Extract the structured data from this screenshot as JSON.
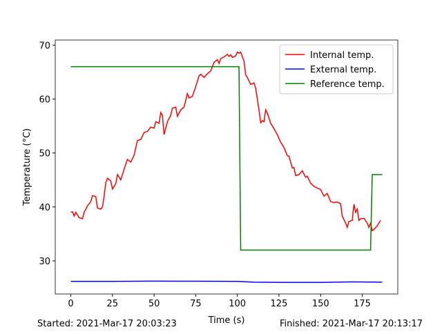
{
  "chart_data": {
    "type": "line",
    "xlabel": "Time (s)",
    "ylabel": "Temperature (°C)",
    "xlim": [
      -9.35,
      196.35
    ],
    "xticks": [
      0,
      25,
      50,
      75,
      100,
      125,
      150,
      175
    ],
    "ylim": [
      23.86,
      70.94
    ],
    "yticks": [
      30,
      40,
      50,
      60,
      70
    ],
    "legend": "upper right",
    "series": [
      {
        "name": "Internal temp.",
        "color": "#ff0000",
        "x": [
          0,
          1,
          2,
          3,
          5,
          7,
          8,
          10,
          12,
          13,
          15,
          16,
          18,
          19,
          20,
          21,
          22,
          24,
          25,
          27,
          28,
          30,
          32,
          34,
          36,
          38,
          40,
          42,
          44,
          46,
          48,
          50,
          51,
          53,
          54,
          55,
          56,
          58,
          60,
          61,
          63,
          64,
          66,
          68,
          70,
          71,
          73,
          75,
          77,
          78,
          80,
          82,
          84,
          86,
          88,
          89,
          90,
          92,
          94,
          95,
          96,
          97,
          99,
          100,
          101,
          102,
          104,
          105,
          106,
          108,
          110,
          111,
          113,
          114,
          115,
          116,
          117,
          118,
          120,
          122,
          124,
          126,
          128,
          130,
          131,
          133,
          134,
          135,
          137,
          139,
          141,
          142,
          144,
          146,
          148,
          150,
          152,
          154,
          156,
          158,
          160,
          162,
          163,
          165,
          166,
          167,
          169,
          170,
          171,
          172,
          173,
          174,
          176,
          178,
          179,
          180,
          181,
          182,
          184,
          186
        ],
        "values": [
          39,
          39.1,
          38.3,
          39,
          38,
          37.8,
          39,
          40.2,
          41,
          42.1,
          41.9,
          39.8,
          39.6,
          40,
          42,
          44.5,
          45.3,
          44.8,
          43.3,
          44.3,
          46,
          45,
          47,
          48.8,
          48.3,
          49.6,
          52.3,
          52.5,
          53.8,
          54,
          54.8,
          54.6,
          55.8,
          55.5,
          57.5,
          57,
          53.4,
          55.8,
          57,
          58.3,
          58.5,
          56.8,
          58,
          58.5,
          61,
          60.2,
          60.5,
          62.3,
          64.3,
          64.6,
          64,
          64.7,
          65.2,
          66.8,
          67.3,
          66.6,
          67.5,
          67.8,
          68.3,
          67.9,
          68.2,
          67.7,
          68,
          68.7,
          68.5,
          68.7,
          67,
          64.5,
          64,
          62.7,
          63,
          62,
          58,
          55.6,
          56,
          55.8,
          58,
          57.4,
          55.5,
          54.5,
          53.4,
          52,
          51,
          49.5,
          49.4,
          47.2,
          47.3,
          45.8,
          46,
          46.7,
          45.5,
          45.7,
          44.4,
          43.8,
          43.5,
          43.2,
          42,
          42.5,
          41,
          40.8,
          40.9,
          40.6,
          38.3,
          37,
          36.2,
          37.3,
          37.5,
          40.5,
          39,
          39.6,
          37.5,
          37.8,
          37.9,
          37,
          36.2,
          37,
          35.6,
          35.8,
          36.5,
          37.5
        ]
      },
      {
        "name": "External temp.",
        "color": "#0000ff",
        "x": [
          0,
          25,
          50,
          75,
          100,
          110,
          130,
          150,
          170,
          187
        ],
        "values": [
          26.2,
          26.2,
          26.25,
          26.22,
          26.2,
          26.05,
          26.0,
          26.0,
          26.1,
          26.05
        ]
      },
      {
        "name": "Reference temp.",
        "color": "#008000",
        "x": [
          0,
          101,
          102,
          180,
          181,
          187
        ],
        "values": [
          66,
          66,
          32,
          32,
          46,
          46
        ]
      }
    ],
    "annotations": [
      "Started: 2021-Mar-17 20:03:23",
      "Finished: 2021-Mar-17 20:13:17"
    ]
  }
}
